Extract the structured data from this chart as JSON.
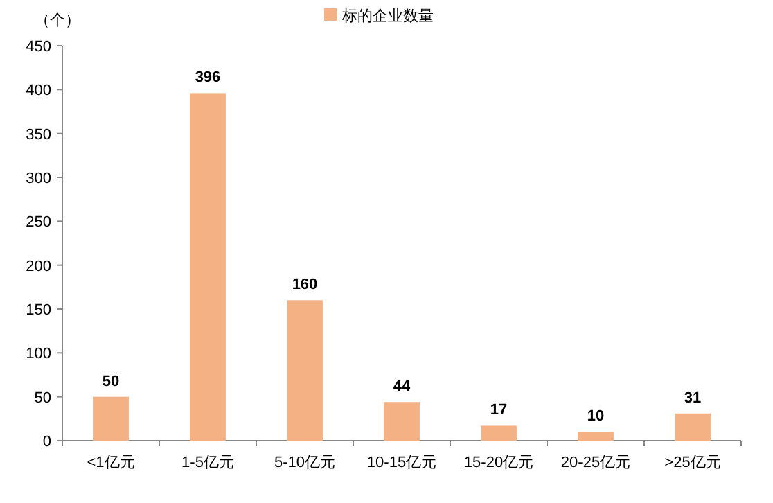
{
  "chart_data": {
    "type": "bar",
    "ylabel": "（个）",
    "categories": [
      "<1亿元",
      "1-5亿元",
      "5-10亿元",
      "10-15亿元",
      "15-20亿元",
      "20-25亿元",
      ">25亿元"
    ],
    "series": [
      {
        "name": "标的企业数量",
        "color": "#f4b183",
        "values": [
          50,
          396,
          160,
          44,
          17,
          10,
          31
        ]
      }
    ],
    "ylim": [
      0,
      450
    ],
    "yticks": [
      0,
      50,
      100,
      150,
      200,
      250,
      300,
      350,
      400,
      450
    ],
    "data_labels": true,
    "legend": "top"
  }
}
